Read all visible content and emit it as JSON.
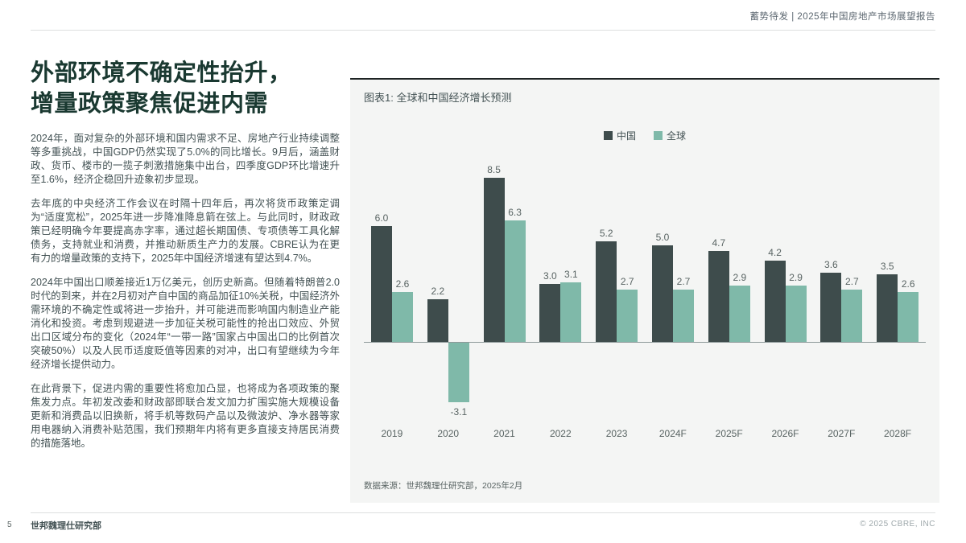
{
  "header": {
    "title": "蓄势待发 | 2025年中国房地产市场展望报告"
  },
  "article": {
    "title_line1": "外部环境不确定性抬升，",
    "title_line2": "增量政策聚焦促进内需",
    "paragraphs": [
      "2024年，面对复杂的外部环境和国内需求不足、房地产行业持续调整等多重挑战，中国GDP仍然实现了5.0%的同比增长。9月后，涵盖财政、货币、楼市的一揽子刺激措施集中出台，四季度GDP环比增速升至1.6%，经济企稳回升迹象初步显现。",
      "去年底的中央经济工作会议在时隔十四年后，再次将货币政策定调为“适度宽松”，2025年进一步降准降息箭在弦上。与此同时，财政政策已经明确今年要提高赤字率，通过超长期国债、专项债等工具化解债务，支持就业和消费，并推动新质生产力的发展。CBRE认为在更有力的增量政策的支持下，2025年中国经济增速有望达到4.7%。",
      "2024年中国出口顺差接近1万亿美元，创历史新高。但随着特朗普2.0时代的到来，并在2月初对产自中国的商品加征10%关税，中国经济外需环境的不确定性或将进一步抬升，并可能进而影响国内制造业产能消化和投资。考虑到规避进一步加征关税可能性的抢出口效应、外贸出口区域分布的变化（2024年“一带一路”国家占中国出口的比例首次突破50%）以及人民币适度贬值等因素的对冲，出口有望继续为今年经济增长提供动力。",
      "在此背景下，促进内需的重要性将愈加凸显，也将成为各项政策的聚焦发力点。年初发改委和财政部即联合发文加力扩围实施大规模设备更新和消费品以旧换新，将手机等数码产品以及微波炉、净水器等家用电器纳入消费补贴范围，我们预期年内将有更多直接支持居民消费的措施落地。"
    ]
  },
  "chart": {
    "panel_title": "图表1: 全球和中国经济增长预测",
    "source": "数据来源：世邦魏理仕研究部，2025年2月"
  },
  "chart_data": {
    "type": "bar",
    "title": "图表1: 全球和中国经济增长预测",
    "categories": [
      "2019",
      "2020",
      "2021",
      "2022",
      "2023",
      "2024F",
      "2025F",
      "2026F",
      "2027F",
      "2028F"
    ],
    "series": [
      {
        "name": "中国",
        "color": "#3e4c4c",
        "values": [
          6.0,
          2.2,
          8.5,
          3.0,
          5.2,
          5.0,
          4.7,
          4.2,
          3.6,
          3.5
        ]
      },
      {
        "name": "全球",
        "color": "#7fb9a9",
        "values": [
          2.6,
          -3.1,
          6.3,
          3.1,
          2.7,
          2.7,
          2.9,
          2.9,
          2.7,
          2.6
        ]
      }
    ],
    "ylim": [
      -4,
      9.5
    ],
    "unit": "%",
    "grid": false,
    "legend_position": "top-center",
    "value_labels": true,
    "source": "数据来源：世邦魏理仕研究部，2025年2月"
  },
  "footer": {
    "page_number": "5",
    "left_text": "世邦魏理仕研究部",
    "right_text": "© 2025 CBRE, INC"
  },
  "colors": {
    "title_green": "#1a3931",
    "body_gray": "#435254",
    "panel_bg": "#f4f5f4",
    "series_china": "#3e4c4c",
    "series_global": "#7fb9a9"
  }
}
